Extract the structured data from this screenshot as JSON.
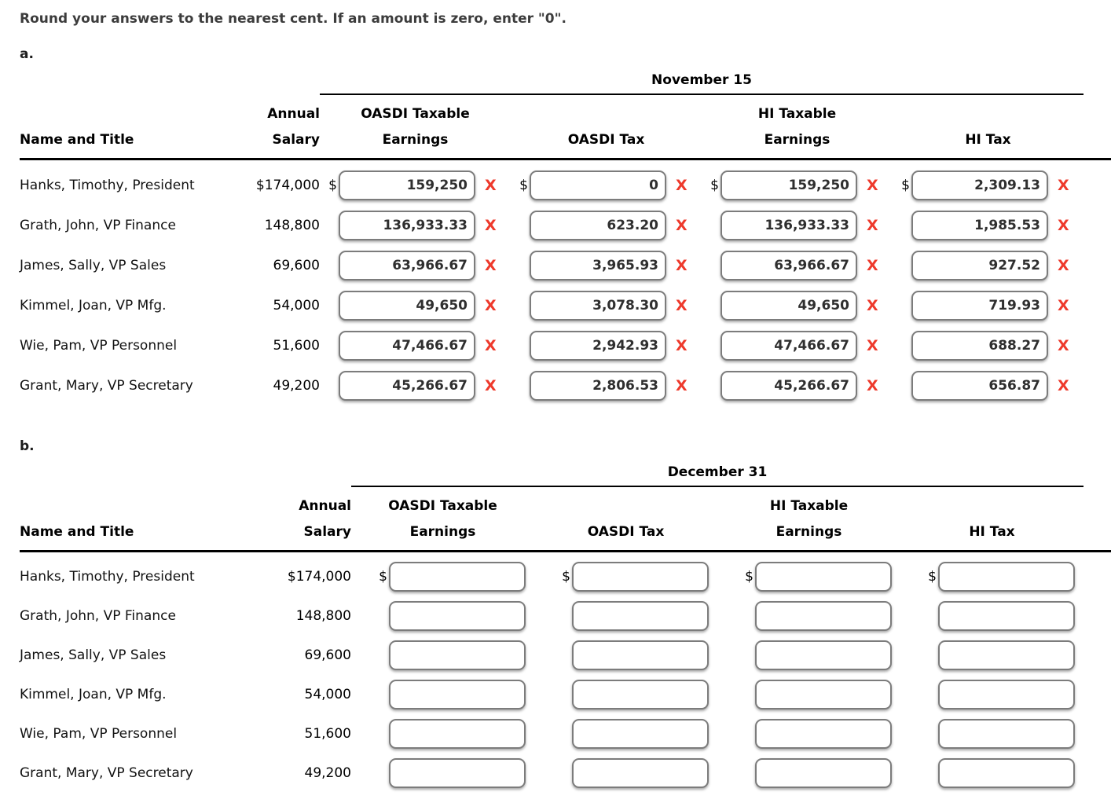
{
  "instruction": "Round your answers to the nearest cent. If an amount is zero, enter \"0\".",
  "marks": {
    "incorrect": "X"
  },
  "colors": {
    "incorrect_x": "#ee392b",
    "input_border": "#7c7c7c",
    "text": "#000000"
  },
  "section_a": {
    "label": "a.",
    "date_header": "November 15",
    "columns": {
      "name_title": "Name and Title",
      "annual": "Annual",
      "salary": "Salary",
      "oasdi_taxable": "OASDI Taxable",
      "earnings": "Earnings",
      "oasdi_tax": "OASDI Tax",
      "hi_taxable": "HI Taxable",
      "hi_tax": "HI Tax"
    },
    "rows": [
      {
        "name": "Hanks, Timothy, President",
        "salary": "$174,000",
        "dollar": "$",
        "oasdi_earnings": "159,250",
        "oasdi_tax": "0",
        "hi_earnings": "159,250",
        "hi_tax": "2,309.13"
      },
      {
        "name": "Grath, John, VP Finance",
        "salary": "148,800",
        "dollar": "",
        "oasdi_earnings": "136,933.33",
        "oasdi_tax": "623.20",
        "hi_earnings": "136,933.33",
        "hi_tax": "1,985.53"
      },
      {
        "name": "James, Sally, VP Sales",
        "salary": "69,600",
        "dollar": "",
        "oasdi_earnings": "63,966.67",
        "oasdi_tax": "3,965.93",
        "hi_earnings": "63,966.67",
        "hi_tax": "927.52"
      },
      {
        "name": "Kimmel, Joan, VP Mfg.",
        "salary": "54,000",
        "dollar": "",
        "oasdi_earnings": "49,650",
        "oasdi_tax": "3,078.30",
        "hi_earnings": "49,650",
        "hi_tax": "719.93"
      },
      {
        "name": "Wie, Pam, VP Personnel",
        "salary": "51,600",
        "dollar": "",
        "oasdi_earnings": "47,466.67",
        "oasdi_tax": "2,942.93",
        "hi_earnings": "47,466.67",
        "hi_tax": "688.27"
      },
      {
        "name": "Grant, Mary, VP Secretary",
        "salary": "49,200",
        "dollar": "",
        "oasdi_earnings": "45,266.67",
        "oasdi_tax": "2,806.53",
        "hi_earnings": "45,266.67",
        "hi_tax": "656.87"
      }
    ]
  },
  "section_b": {
    "label": "b.",
    "date_header": "December 31",
    "columns": {
      "name_title": "Name and Title",
      "annual": "Annual",
      "salary": "Salary",
      "oasdi_taxable": "OASDI Taxable",
      "earnings": "Earnings",
      "oasdi_tax": "OASDI Tax",
      "hi_taxable": "HI Taxable",
      "hi_tax": "HI Tax"
    },
    "rows": [
      {
        "name": "Hanks, Timothy, President",
        "salary": "$174,000",
        "dollar": "$",
        "oasdi_earnings": "",
        "oasdi_tax": "",
        "hi_earnings": "",
        "hi_tax": ""
      },
      {
        "name": "Grath, John, VP Finance",
        "salary": "148,800",
        "dollar": "",
        "oasdi_earnings": "",
        "oasdi_tax": "",
        "hi_earnings": "",
        "hi_tax": ""
      },
      {
        "name": "James, Sally, VP Sales",
        "salary": "69,600",
        "dollar": "",
        "oasdi_earnings": "",
        "oasdi_tax": "",
        "hi_earnings": "",
        "hi_tax": ""
      },
      {
        "name": "Kimmel, Joan, VP Mfg.",
        "salary": "54,000",
        "dollar": "",
        "oasdi_earnings": "",
        "oasdi_tax": "",
        "hi_earnings": "",
        "hi_tax": ""
      },
      {
        "name": "Wie, Pam, VP Personnel",
        "salary": "51,600",
        "dollar": "",
        "oasdi_earnings": "",
        "oasdi_tax": "",
        "hi_earnings": "",
        "hi_tax": ""
      },
      {
        "name": "Grant, Mary, VP Secretary",
        "salary": "49,200",
        "dollar": "",
        "oasdi_earnings": "",
        "oasdi_tax": "",
        "hi_earnings": "",
        "hi_tax": ""
      }
    ]
  }
}
